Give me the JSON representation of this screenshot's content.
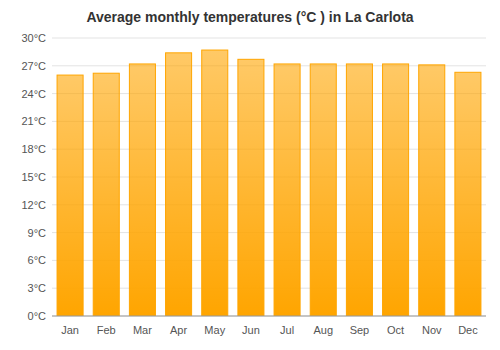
{
  "chart_data": {
    "type": "bar",
    "title": "Average monthly temperatures (°C ) in La Carlota",
    "categories": [
      "Jan",
      "Feb",
      "Mar",
      "Apr",
      "May",
      "Jun",
      "Jul",
      "Aug",
      "Sep",
      "Oct",
      "Nov",
      "Dec"
    ],
    "values": [
      26.0,
      26.2,
      27.2,
      28.4,
      28.7,
      27.7,
      27.2,
      27.2,
      27.2,
      27.2,
      27.1,
      26.3
    ],
    "color": "#FFA500",
    "ylim": [
      0,
      30
    ],
    "yticks": [
      {
        "value": 0,
        "label": "0°C"
      },
      {
        "value": 3,
        "label": "3°C"
      },
      {
        "value": 6,
        "label": "6°C"
      },
      {
        "value": 9,
        "label": "9°C"
      },
      {
        "value": 12,
        "label": "12°C"
      },
      {
        "value": 15,
        "label": "15°C"
      },
      {
        "value": 18,
        "label": "18°C"
      },
      {
        "value": 21,
        "label": "21°C"
      },
      {
        "value": 24,
        "label": "24°C"
      },
      {
        "value": 27,
        "label": "27°C"
      },
      {
        "value": 30,
        "label": "30°C"
      }
    ],
    "grid": true
  }
}
